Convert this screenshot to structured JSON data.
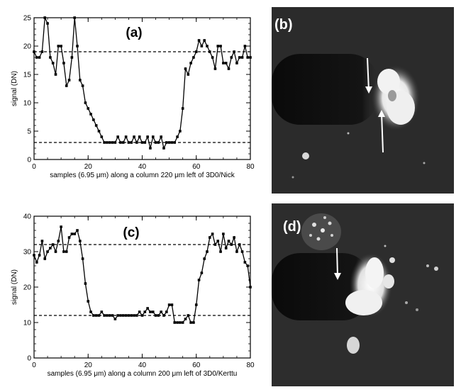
{
  "chart_data": [
    {
      "type": "line",
      "panel_label": "(a)",
      "xlabel": "samples (6.95 μm) along a column 220 μm left of 3D0/Nick",
      "ylabel": "signal (DN)",
      "xlim": [
        0,
        80
      ],
      "ylim": [
        0,
        25
      ],
      "xticks": [
        "0",
        "20",
        "40",
        "60",
        "80"
      ],
      "yticks": [
        "0",
        "5",
        "10",
        "15",
        "20",
        "25"
      ],
      "hlines": [
        19,
        3
      ],
      "series": [
        {
          "x": [
            0,
            1,
            2,
            3,
            4,
            5,
            6,
            7,
            8,
            9,
            10,
            11,
            12,
            13,
            14,
            15,
            16,
            17,
            18,
            19,
            20,
            21,
            22,
            23,
            24,
            25,
            26,
            27,
            28,
            29,
            30,
            31,
            32,
            33,
            34,
            35,
            36,
            37,
            38,
            39,
            40,
            41,
            42,
            43,
            44,
            45,
            46,
            47,
            48,
            49,
            50,
            51,
            52,
            53,
            54,
            55,
            56,
            57,
            58,
            59,
            60,
            61,
            62,
            63,
            64,
            65,
            66,
            67,
            68,
            69,
            70,
            71,
            72,
            73,
            74,
            75,
            76,
            77,
            78,
            79,
            80
          ],
          "y": [
            19,
            18,
            18,
            19,
            25,
            24,
            18,
            17,
            15,
            20,
            20,
            17,
            13,
            14,
            18,
            25,
            20,
            14,
            13,
            10,
            9,
            8,
            7,
            6,
            5,
            4,
            3,
            3,
            3,
            3,
            3,
            4,
            3,
            3,
            4,
            3,
            3,
            4,
            3,
            4,
            3,
            3,
            4,
            2,
            4,
            3,
            3,
            4,
            2,
            3,
            3,
            3,
            3,
            4,
            5,
            9,
            16,
            15,
            17,
            18,
            19,
            21,
            20,
            21,
            20,
            19,
            18,
            16,
            20,
            20,
            17,
            17,
            16,
            18,
            19,
            17,
            18,
            18,
            20,
            18,
            18
          ]
        }
      ]
    },
    {
      "type": "line",
      "panel_label": "(c)",
      "xlabel": "samples (6.95 μm) along a column 200 μm left of 3D0/Kerttu",
      "ylabel": "signal (DN)",
      "xlim": [
        0,
        80
      ],
      "ylim": [
        0,
        40
      ],
      "xticks": [
        "0",
        "20",
        "40",
        "60",
        "80"
      ],
      "yticks": [
        "0",
        "10",
        "20",
        "30",
        "40"
      ],
      "hlines": [
        32,
        12
      ],
      "series": [
        {
          "x": [
            0,
            1,
            2,
            3,
            4,
            5,
            6,
            7,
            8,
            9,
            10,
            11,
            12,
            13,
            14,
            15,
            16,
            17,
            18,
            19,
            20,
            21,
            22,
            23,
            24,
            25,
            26,
            27,
            28,
            29,
            30,
            31,
            32,
            33,
            34,
            35,
            36,
            37,
            38,
            39,
            40,
            41,
            42,
            43,
            44,
            45,
            46,
            47,
            48,
            49,
            50,
            51,
            52,
            53,
            54,
            55,
            56,
            57,
            58,
            59,
            60,
            61,
            62,
            63,
            64,
            65,
            66,
            67,
            68,
            69,
            70,
            71,
            72,
            73,
            74,
            75,
            76,
            77,
            78,
            79,
            80
          ],
          "y": [
            29,
            27,
            29,
            33,
            28,
            30,
            31,
            32,
            30,
            33,
            37,
            30,
            30,
            34,
            35,
            35,
            36,
            33,
            28,
            21,
            16,
            13,
            12,
            12,
            12,
            13,
            12,
            12,
            12,
            12,
            11,
            12,
            12,
            12,
            12,
            12,
            12,
            12,
            12,
            13,
            12,
            13,
            14,
            13,
            13,
            12,
            12,
            13,
            12,
            13,
            15,
            15,
            10,
            10,
            10,
            10,
            11,
            12,
            10,
            10,
            15,
            22,
            24,
            28,
            30,
            34,
            35,
            32,
            33,
            30,
            35,
            31,
            33,
            32,
            34,
            30,
            32,
            30,
            27,
            26,
            20
          ]
        }
      ]
    }
  ],
  "images": [
    {
      "panel_label": "(b)"
    },
    {
      "panel_label": "(d)"
    }
  ]
}
